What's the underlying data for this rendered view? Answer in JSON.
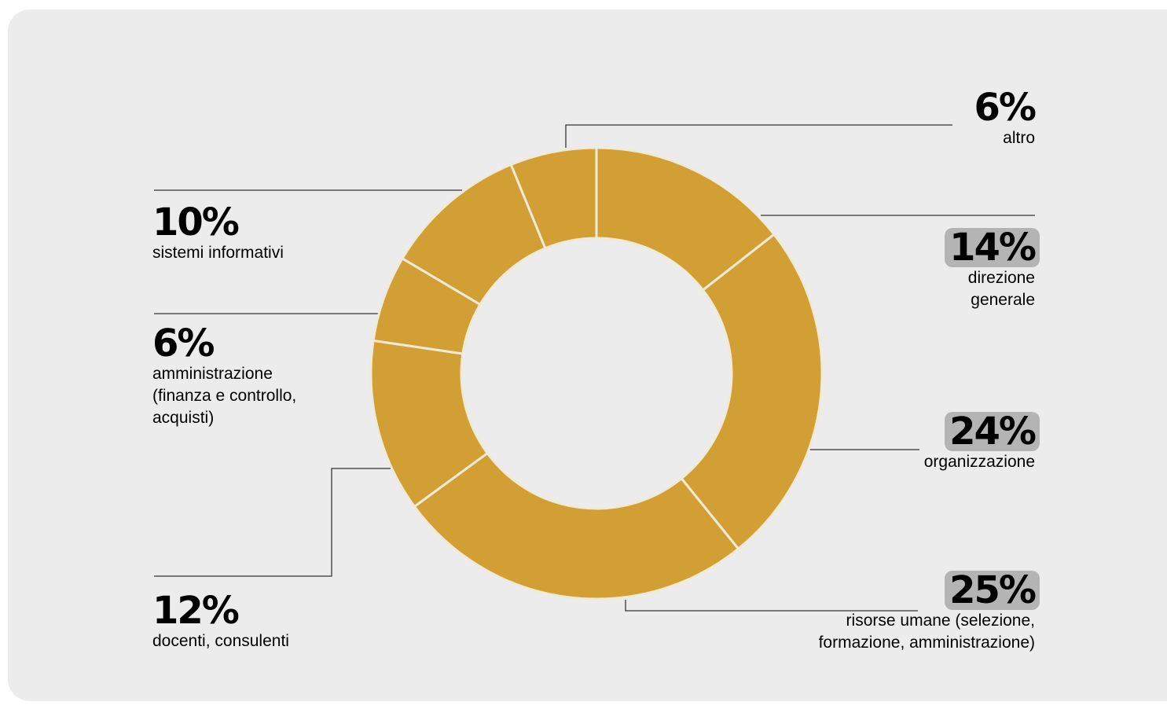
{
  "chart_data": {
    "type": "donut",
    "colors": {
      "slice": "#d19f34",
      "separator": "#f2ead8",
      "leader": "#333333",
      "highlight": "#b4b4b4"
    },
    "slices": [
      {
        "id": "direzione",
        "value": 14,
        "label": "14%",
        "category_lines": [
          "direzione",
          "generale"
        ],
        "highlight": true
      },
      {
        "id": "organizzazione",
        "value": 24,
        "label": "24%",
        "category_lines": [
          "organizzazione"
        ],
        "highlight": true
      },
      {
        "id": "risorse",
        "value": 25,
        "label": "25%",
        "category_lines": [
          "risorse umane (selezione,",
          "formazione, amministrazione)"
        ],
        "highlight": true
      },
      {
        "id": "docenti",
        "value": 12,
        "label": "12%",
        "category_lines": [
          "docenti, consulenti"
        ],
        "highlight": false
      },
      {
        "id": "amministrazione",
        "value": 6,
        "label": "6%",
        "category_lines": [
          "amministrazione",
          "(finanza e controllo,",
          "acquisti)"
        ],
        "highlight": false
      },
      {
        "id": "sistemi",
        "value": 10,
        "label": "10%",
        "category_lines": [
          "sistemi informativi"
        ],
        "highlight": false
      },
      {
        "id": "altro",
        "value": 6,
        "label": "6%",
        "category_lines": [
          "altro"
        ],
        "highlight": false
      }
    ]
  }
}
